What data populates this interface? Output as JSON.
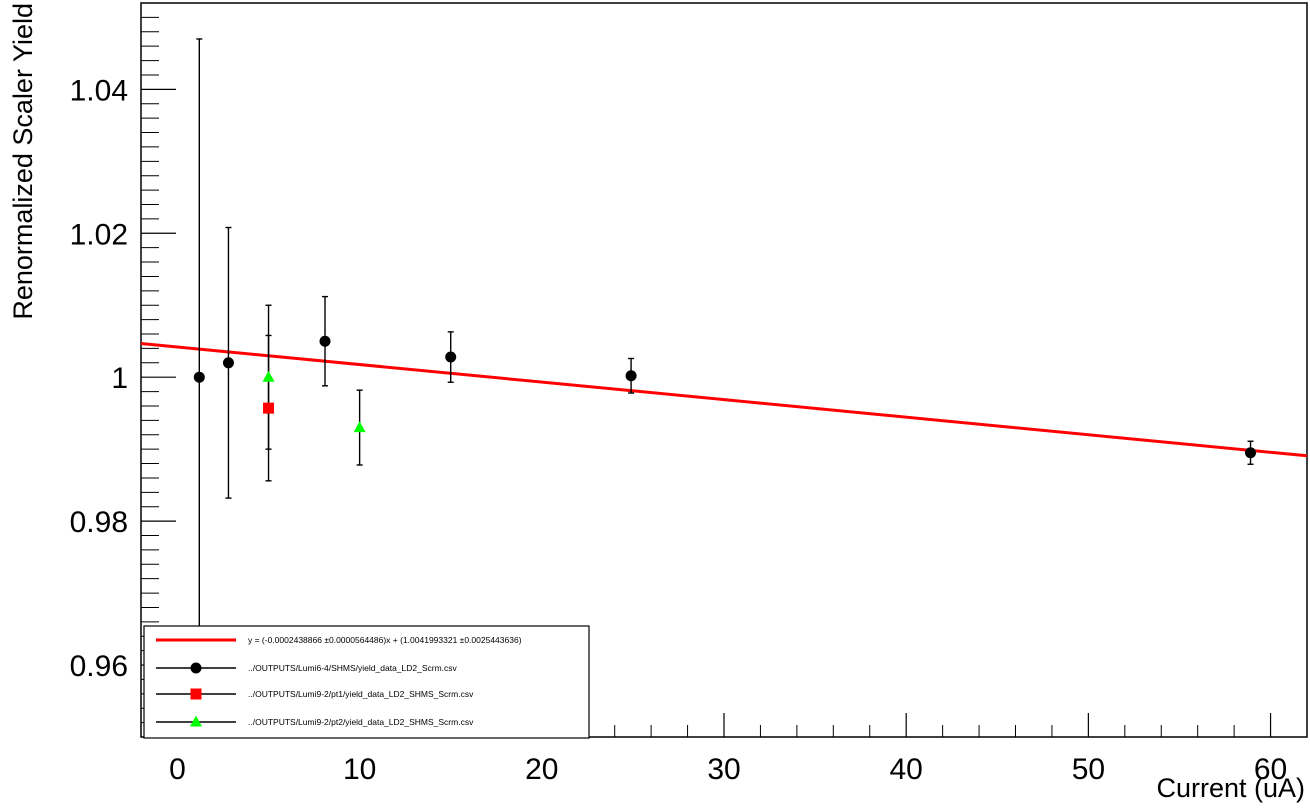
{
  "chart_data": {
    "type": "scatter",
    "title": "",
    "xlabel": "Current (uA)",
    "ylabel": "Renormalized Scaler Yield",
    "xlim": [
      -2,
      62
    ],
    "ylim": [
      0.95,
      1.052
    ],
    "grid": false,
    "legend_position": "bottom-left",
    "x_ticks": [
      0,
      10,
      20,
      30,
      40,
      50,
      60
    ],
    "x_tick_labels": [
      "0",
      "10",
      "20",
      "30",
      "40",
      "50",
      "60"
    ],
    "y_ticks": [
      0.96,
      0.98,
      1.0,
      1.02,
      1.04
    ],
    "y_tick_labels": [
      "0.96",
      "0.98",
      "1",
      "1.02",
      "1.04"
    ],
    "fit": {
      "label": "y = (-0.0002438866 ±0.0000564486)x + (1.0041993321 ±0.0025443636)",
      "slope": -0.0002438866,
      "intercept": 1.0041993321,
      "color": "#ff0000"
    },
    "series": [
      {
        "name": "../OUTPUTS/Lumi6-4/SHMS/yield_data_LD2_Scrm.csv",
        "marker": "circle",
        "color": "#000000",
        "points": [
          {
            "x": 1.2,
            "y": 1.0,
            "err": 0.047
          },
          {
            "x": 2.8,
            "y": 1.002,
            "err": 0.0188
          },
          {
            "x": 8.1,
            "y": 1.005,
            "err": 0.0062
          },
          {
            "x": 15.0,
            "y": 1.0028,
            "err": 0.0035
          },
          {
            "x": 24.9,
            "y": 1.0002,
            "err": 0.0024
          },
          {
            "x": 58.9,
            "y": 0.9895,
            "err": 0.0016
          }
        ]
      },
      {
        "name": "../OUTPUTS/Lumi9-2/pt1/yield_data_LD2_SHMS_Scrm.csv",
        "marker": "square",
        "color": "#ff0000",
        "points": [
          {
            "x": 5.0,
            "y": 0.9957,
            "err": 0.0101
          }
        ]
      },
      {
        "name": "../OUTPUTS/Lumi9-2/pt2/yield_data_LD2_SHMS_Scrm.csv",
        "marker": "triangle",
        "color": "#00ff00",
        "points": [
          {
            "x": 5.0,
            "y": 1.0,
            "err": 0.01
          },
          {
            "x": 10.0,
            "y": 0.993,
            "err": 0.0052
          }
        ]
      }
    ]
  }
}
